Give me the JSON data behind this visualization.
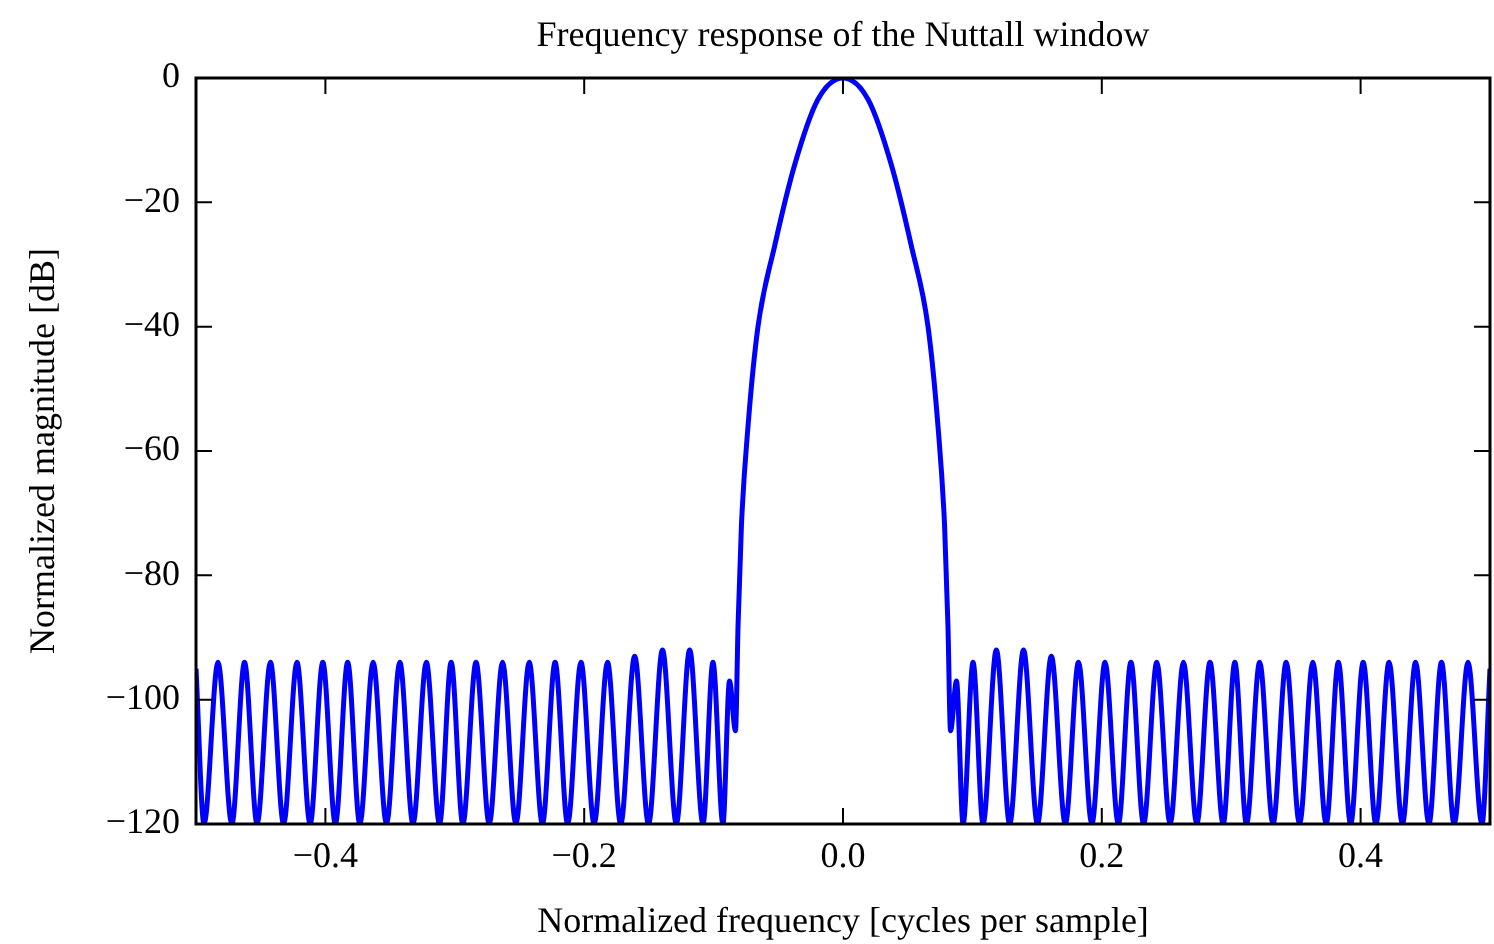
{
  "chart_data": {
    "type": "line",
    "title": "Frequency response of the Nuttall window",
    "xlabel": "Normalized frequency [cycles per sample]",
    "ylabel": "Normalized magnitude [dB]",
    "x": [
      -0.5,
      -0.4938,
      -0.483,
      -0.4723,
      -0.4625,
      -0.4528,
      -0.4425,
      -0.4323,
      -0.422,
      -0.4118,
      -0.402,
      -0.3923,
      -0.3828,
      -0.3734,
      -0.3631,
      -0.3528,
      -0.3425,
      -0.3323,
      -0.322,
      -0.3118,
      -0.3028,
      -0.2938,
      -0.2836,
      -0.2734,
      -0.2631,
      -0.2528,
      -0.2425,
      -0.2323,
      -0.2225,
      -0.2128,
      -0.2025,
      -0.1923,
      -0.182,
      -0.1718,
      -0.161,
      -0.1503,
      -0.1395,
      -0.1288,
      -0.1185,
      -0.1082,
      -0.1005,
      -0.0928,
      -0.0877,
      -0.0831,
      -0.0811,
      -0.0785,
      -0.0734,
      -0.0657,
      -0.0528,
      -0.0374,
      -0.0195,
      0,
      0.0195,
      0.0374,
      0.0528,
      0.0657,
      0.0734,
      0.0785,
      0.0811,
      0.0831,
      0.0877,
      0.0928,
      0.1005,
      0.1082,
      0.1185,
      0.1288,
      0.1395,
      0.1503,
      0.161,
      0.1718,
      0.182,
      0.1923,
      0.2025,
      0.2128,
      0.2225,
      0.2323,
      0.2425,
      0.2528,
      0.2631,
      0.2734,
      0.2836,
      0.2938,
      0.3028,
      0.3118,
      0.322,
      0.3323,
      0.3425,
      0.3528,
      0.3631,
      0.3734,
      0.3828,
      0.3923,
      0.402,
      0.4118,
      0.422,
      0.4323,
      0.4425,
      0.4528,
      0.4625,
      0.4723,
      0.483,
      0.4938,
      0.5
    ],
    "series": [
      {
        "color": "#0000ff",
        "values": [
          -95,
          -120,
          -94,
          -120,
          -94,
          -120,
          -94,
          -120,
          -94,
          -120,
          -94,
          -120,
          -94,
          -120,
          -94,
          -120,
          -94,
          -120,
          -94,
          -120,
          -94,
          -120,
          -94,
          -120,
          -94,
          -120,
          -94,
          -120,
          -94,
          -120,
          -94,
          -120,
          -94,
          -120,
          -93,
          -120,
          -92,
          -120,
          -92,
          -120,
          -94,
          -120,
          -97,
          -105,
          -88,
          -72,
          -56,
          -40,
          -27,
          -14,
          -3.5,
          0,
          -3.5,
          -14,
          -27,
          -40,
          -56,
          -72,
          -88,
          -105,
          -97,
          -120,
          -94,
          -120,
          -92,
          -120,
          -92,
          -120,
          -93,
          -120,
          -94,
          -120,
          -94,
          -120,
          -94,
          -120,
          -94,
          -120,
          -94,
          -120,
          -94,
          -120,
          -94,
          -120,
          -94,
          -120,
          -94,
          -120,
          -94,
          -120,
          -94,
          -120,
          -94,
          -120,
          -94,
          -120,
          -94,
          -120,
          -94,
          -120,
          -94,
          -120,
          -95
        ]
      }
    ],
    "xlim": [
      -0.5,
      0.5
    ],
    "xticks": [
      {
        "value": -0.4,
        "label": "−0.4"
      },
      {
        "value": -0.2,
        "label": "−0.2"
      },
      {
        "value": 0,
        "label": "0.0"
      },
      {
        "value": 0.2,
        "label": "0.2"
      },
      {
        "value": 0.4,
        "label": "0.4"
      }
    ],
    "ylim": [
      -120,
      0
    ],
    "yticks": [
      {
        "value": -120,
        "label": "−120"
      },
      {
        "value": -100,
        "label": "−100"
      },
      {
        "value": -80,
        "label": "−80"
      },
      {
        "value": -60,
        "label": "−60"
      },
      {
        "value": -40,
        "label": "−40"
      },
      {
        "value": -20,
        "label": "−20"
      },
      0
    ],
    "grid": false,
    "legend": false,
    "marker": "none",
    "line_style": "solid"
  }
}
